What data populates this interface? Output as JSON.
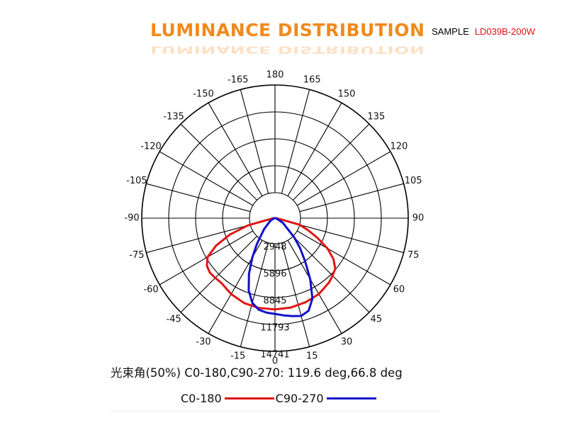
{
  "header": {
    "title": "LUMINANCE DISTRIBUTION",
    "sample_label": "SAMPLE",
    "sample_model": "LD039B-200W"
  },
  "colors": {
    "title": "#f08a1e",
    "model": "#e01010",
    "c0_180": "#e01515",
    "c90_270": "#1010cc",
    "grid": "#000000"
  },
  "chart_data": {
    "type": "polar",
    "angle_labels": [
      "180",
      "165",
      "150",
      "135",
      "120",
      "105",
      "90",
      "75",
      "60",
      "45",
      "30",
      "15",
      "0",
      "-15",
      "-30",
      "-45",
      "-60",
      "-75",
      "-90",
      "-105",
      "-120",
      "-135",
      "-150",
      "-165"
    ],
    "angle_step_deg": 15,
    "radial_ticks": [
      2948,
      5896,
      8845,
      11793,
      14741
    ],
    "radial_max": 14741,
    "series": [
      {
        "name": "C0-180",
        "color": "#e01515",
        "points": [
          [
            -85,
            250
          ],
          [
            -75,
            3100
          ],
          [
            -70,
            5300
          ],
          [
            -65,
            7200
          ],
          [
            -60,
            8600
          ],
          [
            -55,
            9200
          ],
          [
            -50,
            9400
          ],
          [
            -45,
            9350
          ],
          [
            -40,
            9300
          ],
          [
            -30,
            9700
          ],
          [
            -20,
            10000
          ],
          [
            -10,
            10100
          ],
          [
            0,
            10100
          ],
          [
            10,
            10050
          ],
          [
            20,
            9900
          ],
          [
            30,
            9700
          ],
          [
            40,
            9300
          ],
          [
            45,
            9000
          ],
          [
            50,
            8700
          ],
          [
            55,
            7900
          ],
          [
            60,
            6700
          ],
          [
            65,
            5200
          ],
          [
            70,
            3900
          ],
          [
            75,
            2800
          ],
          [
            85,
            250
          ]
        ]
      },
      {
        "name": "C90-270",
        "color": "#1010cc",
        "points": [
          [
            -85,
            100
          ],
          [
            -60,
            600
          ],
          [
            -45,
            1700
          ],
          [
            -35,
            3500
          ],
          [
            -30,
            5000
          ],
          [
            -25,
            6800
          ],
          [
            -20,
            8500
          ],
          [
            -15,
            9700
          ],
          [
            -10,
            10300
          ],
          [
            -5,
            10500
          ],
          [
            0,
            10600
          ],
          [
            5,
            10800
          ],
          [
            10,
            11000
          ],
          [
            15,
            11200
          ],
          [
            20,
            10900
          ],
          [
            25,
            9800
          ],
          [
            30,
            7800
          ],
          [
            35,
            5800
          ],
          [
            40,
            4300
          ],
          [
            45,
            3000
          ],
          [
            60,
            1000
          ],
          [
            85,
            100
          ]
        ]
      }
    ],
    "beam_text": "光束角(50%) C0-180,C90-270: 119.6 deg,66.8 deg",
    "legend_position": "bottom"
  }
}
